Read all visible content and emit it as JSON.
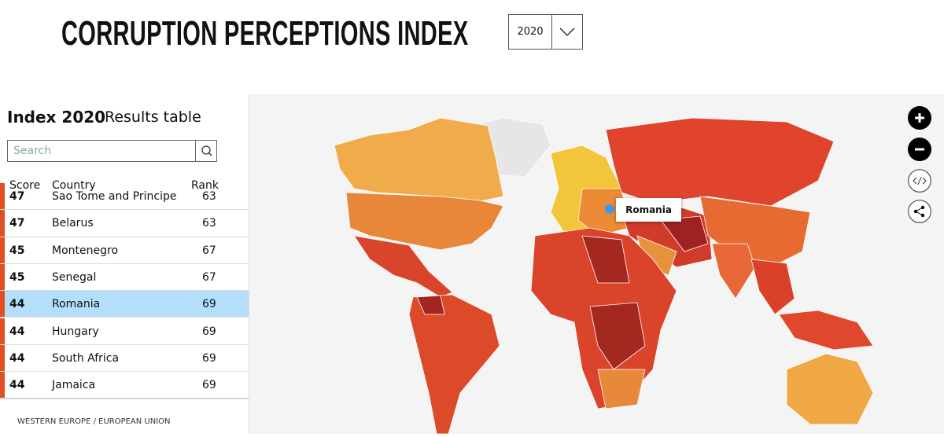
{
  "header": {
    "title": "CORRUPTION PERCEPTIONS INDEX",
    "year_select": "2020"
  },
  "panel": {
    "index_label": "Index 2020",
    "subtitle": "Results table",
    "search_placeholder": "Search",
    "columns": [
      "Score",
      "Country",
      "Rank"
    ],
    "rows": [
      [
        47,
        "Sao Tome and Principe",
        63
      ],
      [
        47,
        "Belarus",
        63
      ],
      [
        45,
        "Montenegro",
        67
      ],
      [
        45,
        "Senegal",
        67
      ],
      [
        44,
        "Romania",
        69
      ],
      [
        44,
        "Hungary",
        69
      ],
      [
        44,
        "South Africa",
        69
      ],
      [
        44,
        "Jamaica",
        69
      ]
    ],
    "selected_row": 4,
    "footer": "WESTERN EUROPE / EUROPEAN UNION"
  },
  "map": {
    "tooltip": "Romania"
  }
}
